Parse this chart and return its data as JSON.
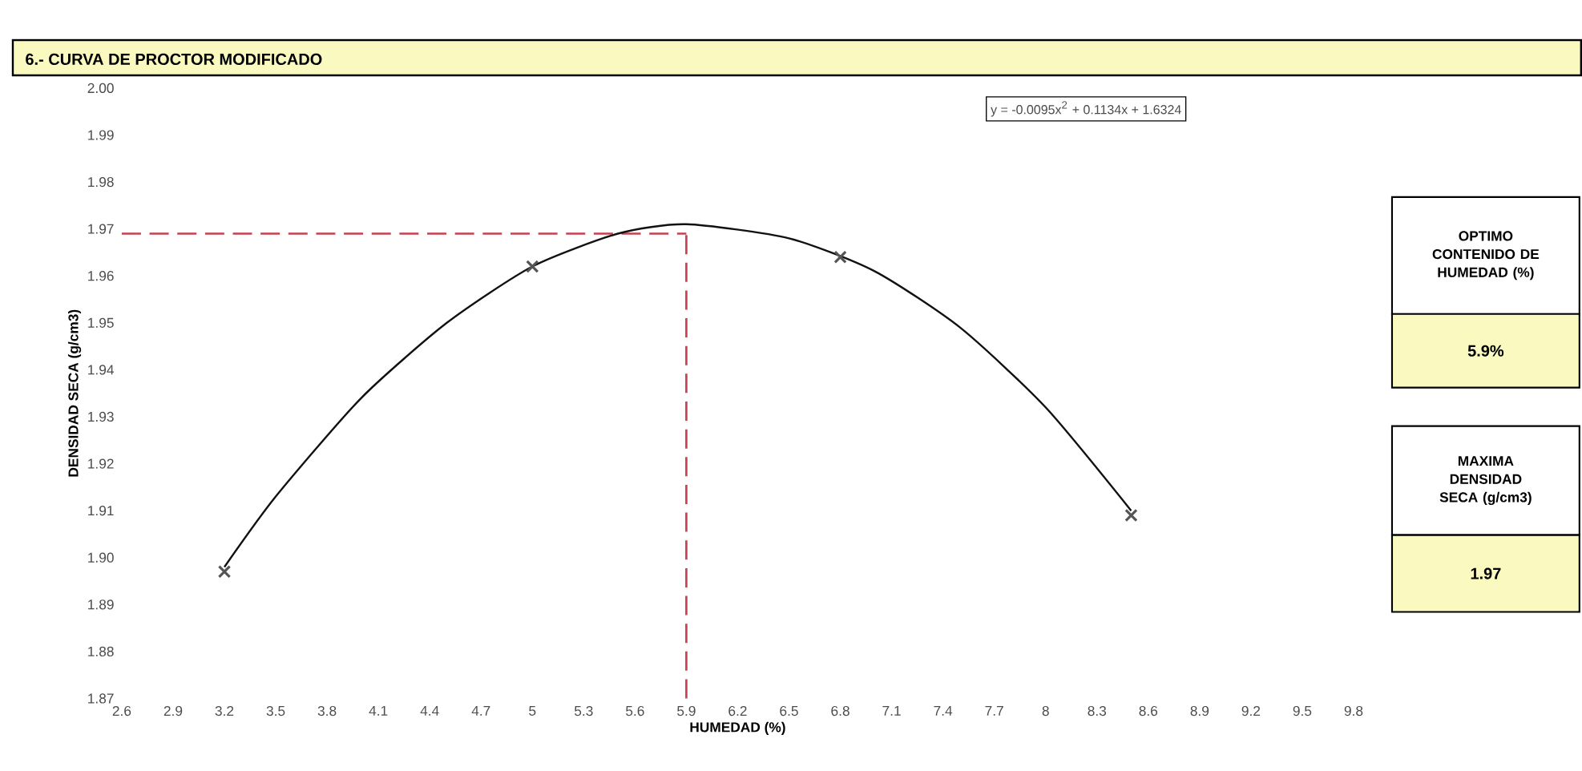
{
  "chart_data": {
    "type": "scatter",
    "title": "6.- CURVA DE PROCTOR MODIFICADO",
    "xlabel": "HUMEDAD (%)",
    "ylabel": "DENSIDAD SECA (g/cm3)",
    "annotations": [
      "y = -0.0095x$^{2}$ + 0.1134x + 1.6324",
      "OPTIMO CONTENIDO DE HUMEDAD (%)",
      "5.9%",
      "MAXIMA DENSIDAD SECA (g/cm3)",
      "1.97"
    ],
    "series": [
      {
        "type": "scatter",
        "marker": "cross",
        "color": "#555555",
        "x": [
          3.2,
          5.0,
          6.8,
          8.5
        ],
        "values": [
          1.897,
          1.962,
          1.964,
          1.909
        ]
      },
      {
        "type": "line",
        "marker": "none",
        "line_style": "solid",
        "color": "#111111",
        "x": [
          3.2,
          3.5,
          4.0,
          4.5,
          5.0,
          5.5,
          5.9,
          6.5,
          7.0,
          7.5,
          8.0,
          8.5
        ],
        "values": [
          1.898,
          1.913,
          1.934,
          1.95,
          1.962,
          1.969,
          1.971,
          1.968,
          1.961,
          1.949,
          1.932,
          1.91
        ]
      }
    ],
    "ref_lines": [
      {
        "axis": "y",
        "value": 1.969,
        "color": "#c8404f",
        "line_style": "dashed"
      },
      {
        "axis": "x",
        "value": 5.9,
        "color": "#c8404f",
        "line_style": "dashed"
      }
    ],
    "xlim": [
      2.6,
      9.8
    ],
    "ylim": [
      1.87,
      2.0
    ],
    "xticks": [
      2.6,
      2.9,
      3.2,
      3.5,
      3.8,
      4.1,
      4.4,
      4.7,
      5,
      5.3,
      5.6,
      5.9,
      6.2,
      6.5,
      6.8,
      7.1,
      7.4,
      7.7,
      8,
      8.3,
      8.6,
      8.9,
      9.2,
      9.5,
      9.8
    ],
    "yticks": [
      {
        "value": 1.87,
        "label": "1.87"
      },
      {
        "value": 1.88,
        "label": "1.88"
      },
      {
        "value": 1.89,
        "label": "1.89"
      },
      {
        "value": 1.9,
        "label": "1.90"
      },
      {
        "value": 1.91,
        "label": "1.91"
      },
      {
        "value": 1.92,
        "label": "1.92"
      },
      {
        "value": 1.93,
        "label": "1.93"
      },
      {
        "value": 1.94,
        "label": "1.94"
      },
      {
        "value": 1.95,
        "label": "1.95"
      },
      {
        "value": 1.96,
        "label": "1.96"
      },
      {
        "value": 1.97,
        "label": "1.97"
      },
      {
        "value": 1.98,
        "label": "1.98"
      },
      {
        "value": 1.99,
        "label": "1.99"
      },
      {
        "value": 2.0,
        "label": "2.00"
      }
    ],
    "grid": false
  }
}
